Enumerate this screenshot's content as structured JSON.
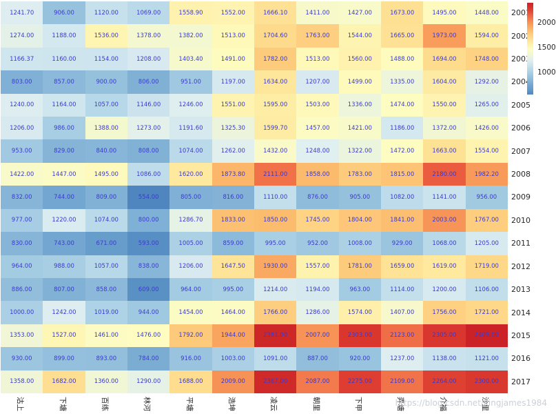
{
  "watermark": "https://blog.csdn.net/kingjames1984",
  "chart_data": {
    "type": "heatmap",
    "title": "",
    "xlabel": "",
    "ylabel": "",
    "grid": false,
    "legend_position": "right-colorbar",
    "x_categories": [
      "沽上",
      "下塘",
      "百练",
      "林河",
      "平塘",
      "浩坤",
      "凌云",
      "朝里",
      "下甲",
      "弄塘",
      "介福",
      "沙里"
    ],
    "y_categories": [
      "2001",
      "2002",
      "2003",
      "2004",
      "2005",
      "2006",
      "2007",
      "2008",
      "2009",
      "2010",
      "2011",
      "2012",
      "2013",
      "2014",
      "2015",
      "2016",
      "2017"
    ],
    "values": [
      [
        1241.7,
        906.0,
        1120.0,
        1069.0,
        1558.9,
        1552.0,
        1666.1,
        1411.0,
        1427.0,
        1673.0,
        1495.0,
        1448.0
      ],
      [
        1274.0,
        1188.0,
        1536.0,
        1378.0,
        1382.0,
        1513.0,
        1704.6,
        1763.0,
        1544.0,
        1665.0,
        1973.0,
        1594.0
      ],
      [
        1166.37,
        1160.0,
        1154.0,
        1208.0,
        1403.4,
        1491.0,
        1782.0,
        1513.0,
        1560.0,
        1488.0,
        1694.0,
        1748.0
      ],
      [
        803.0,
        857.0,
        900.0,
        806.0,
        951.0,
        1197.0,
        1634.0,
        1207.0,
        1499.0,
        1335.0,
        1604.0,
        1292.0
      ],
      [
        1240.0,
        1164.0,
        1057.0,
        1146.0,
        1246.0,
        1551.0,
        1595.0,
        1503.0,
        1336.0,
        1474.0,
        1550.0,
        1265.0
      ],
      [
        1206.0,
        986.0,
        1388.0,
        1273.0,
        1191.6,
        1325.3,
        1599.7,
        1457.0,
        1421.0,
        1186.0,
        1372.0,
        1426.0
      ],
      [
        953.0,
        829.0,
        840.0,
        808.0,
        1074.0,
        1262.0,
        1432.0,
        1248.0,
        1322.0,
        1472.0,
        1663.0,
        1554.0
      ],
      [
        1422.0,
        1447.0,
        1495.0,
        1086.0,
        1620.0,
        1873.8,
        2111.0,
        1858.0,
        1783.0,
        1815.0,
        2180.0,
        1982.2
      ],
      [
        832.0,
        744.0,
        809.0,
        554.0,
        805.0,
        816.0,
        1110.0,
        876.0,
        905.0,
        1082.0,
        1141.0,
        956.0
      ],
      [
        977.0,
        1220.0,
        1074.0,
        800.0,
        1286.7,
        1833.0,
        1850.0,
        1745.0,
        1804.0,
        1841.0,
        2003.0,
        1767.0
      ],
      [
        830.0,
        743.0,
        671.0,
        593.0,
        1005.0,
        859.0,
        995.0,
        952.0,
        1008.0,
        929.0,
        1068.0,
        1205.0
      ],
      [
        964.0,
        988.0,
        1057.0,
        838.0,
        1206.0,
        1647.5,
        1930.0,
        1557.0,
        1781.0,
        1659.0,
        1619.0,
        1719.0
      ],
      [
        886.0,
        807.0,
        858.0,
        609.0,
        964.0,
        995.0,
        1214.0,
        1194.0,
        963.0,
        1114.0,
        1200.0,
        1106.0
      ],
      [
        1000.0,
        1242.0,
        1019.0,
        944.0,
        1454.0,
        1464.0,
        1766.0,
        1286.0,
        1574.0,
        1407.0,
        1756.0,
        1721.0
      ],
      [
        1353.0,
        1527.0,
        1461.0,
        1476.0,
        1792.0,
        1944.0,
        2381.0,
        2007.0,
        2303.0,
        2123.0,
        2305.0,
        2409.0
      ],
      [
        930.0,
        899.0,
        893.0,
        784.0,
        916.0,
        1003.0,
        1091.0,
        887.0,
        920.0,
        1237.0,
        1138.0,
        1121.0
      ],
      [
        1358.0,
        1682.0,
        1360.0,
        1290.0,
        1688.0,
        2009.0,
        2367.0,
        2087.0,
        2275.0,
        2109.0,
        2264.0,
        2300.0
      ]
    ],
    "value_decimals": 2,
    "colorbar": {
      "ticks": [
        2000,
        1500,
        1000
      ],
      "vmin": 554,
      "vmax": 2409
    },
    "colors": {
      "annotation_text": "#3a3ad0",
      "axis_text": "#262626",
      "watermark_text": "#c3c8d0",
      "colormap_name": "RdYlBu_r",
      "gradient_stops": [
        [
          554,
          "#4f86bf"
        ],
        [
          650,
          "#639ac9"
        ],
        [
          750,
          "#74a7d0"
        ],
        [
          850,
          "#8ab8d9"
        ],
        [
          950,
          "#a0c9e1"
        ],
        [
          1050,
          "#b5d7e8"
        ],
        [
          1150,
          "#cde4ee"
        ],
        [
          1250,
          "#e0eff0"
        ],
        [
          1320,
          "#ebf4dd"
        ],
        [
          1400,
          "#f6f9cd"
        ],
        [
          1480,
          "#fefcc0"
        ],
        [
          1560,
          "#fef2ae"
        ],
        [
          1650,
          "#fee497"
        ],
        [
          1750,
          "#fed283"
        ],
        [
          1850,
          "#fcbc6e"
        ],
        [
          1950,
          "#f9a45f"
        ],
        [
          2050,
          "#f58651"
        ],
        [
          2150,
          "#ee6543"
        ],
        [
          2250,
          "#e04434"
        ],
        [
          2330,
          "#d5302b"
        ],
        [
          2409,
          "#ca2227"
        ]
      ]
    }
  }
}
